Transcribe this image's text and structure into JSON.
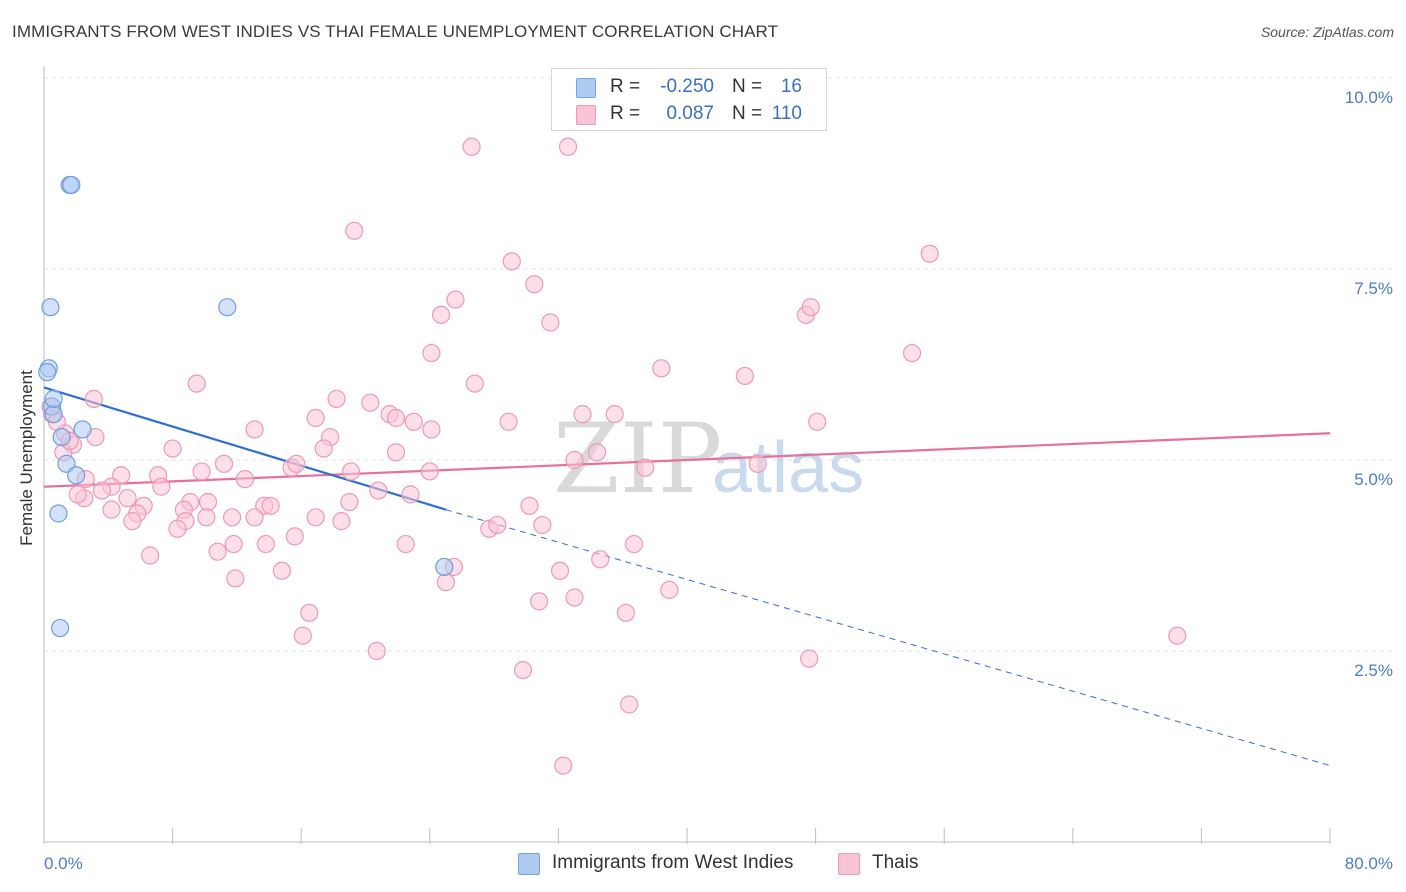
{
  "title": "IMMIGRANTS FROM WEST INDIES VS THAI FEMALE UNEMPLOYMENT CORRELATION CHART",
  "source": "Source: ZipAtlas.com",
  "watermark": {
    "zip": "ZIP",
    "atlas": "atlas"
  },
  "legend": {
    "rows": [
      {
        "r_label": "R =",
        "r_value": "-0.250",
        "n_label": "N =",
        "n_value": "16",
        "color": "#aecbf2",
        "border": "#7aa6e0"
      },
      {
        "r_label": "R =",
        "r_value": "0.087",
        "n_label": "N =",
        "n_value": "110",
        "color": "#f9c4d6",
        "border": "#ec9ab6"
      }
    ]
  },
  "bottom_legend": [
    {
      "label": "Immigrants from West Indies",
      "color": "#aecbf2",
      "border": "#7aa6e0"
    },
    {
      "label": "Thais",
      "color": "#f9c4d6",
      "border": "#ec9ab6"
    }
  ],
  "chart_data": {
    "type": "scatter",
    "title": "IMMIGRANTS FROM WEST INDIES VS THAI FEMALE UNEMPLOYMENT CORRELATION CHART",
    "xlabel": "",
    "ylabel": "Female Unemployment",
    "xlim": [
      0,
      80
    ],
    "ylim": [
      0,
      10
    ],
    "x_tick_labels": [
      "0.0%",
      "80.0%"
    ],
    "y_ticks": [
      2.5,
      5.0,
      7.5,
      10.0
    ],
    "y_tick_labels": [
      "2.5%",
      "5.0%",
      "7.5%",
      "10.0%"
    ],
    "series": [
      {
        "name": "Immigrants from West Indies",
        "color": "#aecbf2",
        "stroke": "#6f9fe0",
        "trend_color": "#2f6fd0",
        "trend": {
          "x0": 0,
          "y0": 5.95,
          "x1": 25,
          "y1": 4.35,
          "dash_x1": 80,
          "dash_y1": 1.0
        },
        "points": [
          [
            1.6,
            8.6
          ],
          [
            1.7,
            8.6
          ],
          [
            0.4,
            7.0
          ],
          [
            11.4,
            7.0
          ],
          [
            0.3,
            6.2
          ],
          [
            0.2,
            6.15
          ],
          [
            0.5,
            5.7
          ],
          [
            0.6,
            5.6
          ],
          [
            2.4,
            5.4
          ],
          [
            1.1,
            5.3
          ],
          [
            1.4,
            4.95
          ],
          [
            2.0,
            4.8
          ],
          [
            0.9,
            4.3
          ],
          [
            24.9,
            3.6
          ],
          [
            1.0,
            2.8
          ],
          [
            0.6,
            5.8
          ]
        ]
      },
      {
        "name": "Thais",
        "color": "#f9c4d6",
        "stroke": "#ec9ab6",
        "trend_color": "#e8709a",
        "trend": {
          "x0": 0,
          "y0": 4.65,
          "x1": 80,
          "y1": 5.35
        },
        "points": [
          [
            26.6,
            9.1
          ],
          [
            32.6,
            9.1
          ],
          [
            19.3,
            8.0
          ],
          [
            29.1,
            7.6
          ],
          [
            55.1,
            7.7
          ],
          [
            30.5,
            7.3
          ],
          [
            25.6,
            7.1
          ],
          [
            24.7,
            6.9
          ],
          [
            47.4,
            6.9
          ],
          [
            47.7,
            7.0
          ],
          [
            31.5,
            6.8
          ],
          [
            24.1,
            6.4
          ],
          [
            54.0,
            6.4
          ],
          [
            38.4,
            6.2
          ],
          [
            43.6,
            6.1
          ],
          [
            9.5,
            6.0
          ],
          [
            26.8,
            6.0
          ],
          [
            3.1,
            5.8
          ],
          [
            18.2,
            5.8
          ],
          [
            20.3,
            5.75
          ],
          [
            21.5,
            5.6
          ],
          [
            33.5,
            5.6
          ],
          [
            35.5,
            5.6
          ],
          [
            16.9,
            5.55
          ],
          [
            21.9,
            5.55
          ],
          [
            28.9,
            5.5
          ],
          [
            23.0,
            5.5
          ],
          [
            48.1,
            5.5
          ],
          [
            13.1,
            5.4
          ],
          [
            24.1,
            5.4
          ],
          [
            1.3,
            5.35
          ],
          [
            3.2,
            5.3
          ],
          [
            17.8,
            5.3
          ],
          [
            1.8,
            5.2
          ],
          [
            8.0,
            5.15
          ],
          [
            17.4,
            5.15
          ],
          [
            21.9,
            5.1
          ],
          [
            34.4,
            5.1
          ],
          [
            33.0,
            5.0
          ],
          [
            11.2,
            4.95
          ],
          [
            15.4,
            4.9
          ],
          [
            15.7,
            4.95
          ],
          [
            19.1,
            4.85
          ],
          [
            24.0,
            4.85
          ],
          [
            9.8,
            4.85
          ],
          [
            37.4,
            4.9
          ],
          [
            44.4,
            4.95
          ],
          [
            7.1,
            4.8
          ],
          [
            4.8,
            4.8
          ],
          [
            2.6,
            4.75
          ],
          [
            12.5,
            4.75
          ],
          [
            7.3,
            4.65
          ],
          [
            4.2,
            4.65
          ],
          [
            3.6,
            4.6
          ],
          [
            20.8,
            4.6
          ],
          [
            22.8,
            4.55
          ],
          [
            2.5,
            4.5
          ],
          [
            5.2,
            4.5
          ],
          [
            9.1,
            4.45
          ],
          [
            10.2,
            4.45
          ],
          [
            19.0,
            4.45
          ],
          [
            30.2,
            4.4
          ],
          [
            6.2,
            4.4
          ],
          [
            4.2,
            4.35
          ],
          [
            8.7,
            4.35
          ],
          [
            13.7,
            4.4
          ],
          [
            14.1,
            4.4
          ],
          [
            5.8,
            4.3
          ],
          [
            10.1,
            4.25
          ],
          [
            11.7,
            4.25
          ],
          [
            13.1,
            4.25
          ],
          [
            8.8,
            4.2
          ],
          [
            16.9,
            4.25
          ],
          [
            5.5,
            4.2
          ],
          [
            18.5,
            4.2
          ],
          [
            8.3,
            4.1
          ],
          [
            27.7,
            4.1
          ],
          [
            28.2,
            4.15
          ],
          [
            31.0,
            4.15
          ],
          [
            15.6,
            4.0
          ],
          [
            11.8,
            3.9
          ],
          [
            13.8,
            3.9
          ],
          [
            22.5,
            3.9
          ],
          [
            36.7,
            3.9
          ],
          [
            10.8,
            3.8
          ],
          [
            6.6,
            3.75
          ],
          [
            34.6,
            3.7
          ],
          [
            25.5,
            3.6
          ],
          [
            14.8,
            3.55
          ],
          [
            32.1,
            3.55
          ],
          [
            11.9,
            3.45
          ],
          [
            25.0,
            3.4
          ],
          [
            38.9,
            3.3
          ],
          [
            33.0,
            3.2
          ],
          [
            30.8,
            3.15
          ],
          [
            36.2,
            3.0
          ],
          [
            16.5,
            3.0
          ],
          [
            16.1,
            2.7
          ],
          [
            70.5,
            2.7
          ],
          [
            20.7,
            2.5
          ],
          [
            47.6,
            2.4
          ],
          [
            29.8,
            2.25
          ],
          [
            36.4,
            1.8
          ],
          [
            32.3,
            1.0
          ],
          [
            0.5,
            5.6
          ],
          [
            1.2,
            5.1
          ],
          [
            1.6,
            5.25
          ],
          [
            0.4,
            5.7
          ],
          [
            0.8,
            5.5
          ],
          [
            2.1,
            4.55
          ]
        ]
      }
    ]
  }
}
